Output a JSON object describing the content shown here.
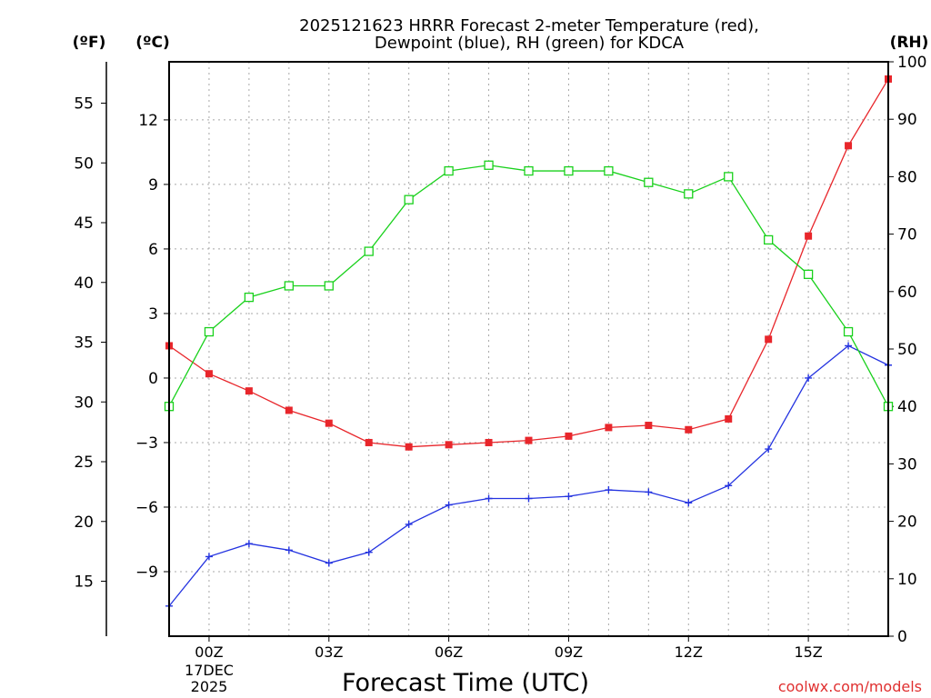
{
  "chart_data": {
    "type": "line",
    "title_line1": "2025121623 HRRR Forecast 2-meter Temperature (red),",
    "title_line2": "Dewpoint (blue), RH (green) for KDCA",
    "xlabel": "Forecast Time (UTC)",
    "watermark": "coolwx.com/models",
    "unit_labels": {
      "fahrenheit": "(ºF)",
      "celsius": "(ºC)",
      "rh": "(RH)"
    },
    "x_hours": [
      -1,
      0,
      1,
      2,
      3,
      4,
      5,
      6,
      7,
      8,
      9,
      10,
      11,
      12,
      13,
      14,
      15,
      16,
      17
    ],
    "xlim": [
      -1,
      17
    ],
    "x_ticks": [
      {
        "hour": 0,
        "label": "00Z"
      },
      {
        "hour": 3,
        "label": "03Z"
      },
      {
        "hour": 6,
        "label": "06Z"
      },
      {
        "hour": 9,
        "label": "09Z"
      },
      {
        "hour": 12,
        "label": "12Z"
      },
      {
        "hour": 15,
        "label": "15Z"
      }
    ],
    "date_label_line1": "17DEC",
    "date_label_line2": "2025",
    "celsius_axis": {
      "lim": [
        -12,
        14.7
      ],
      "ticks": [
        12,
        9,
        6,
        3,
        0,
        -3,
        -6,
        -9
      ],
      "tick_labels": [
        "12",
        "9",
        "6",
        "3",
        "0",
        "−3",
        "−6",
        "−9"
      ]
    },
    "fahrenheit_axis": {
      "ticks": [
        55,
        50,
        45,
        40,
        35,
        30,
        25,
        20,
        15
      ],
      "tick_labels": [
        "55",
        "50",
        "45",
        "40",
        "35",
        "30",
        "25",
        "20",
        "15"
      ]
    },
    "rh_axis": {
      "lim": [
        0,
        100
      ],
      "ticks": [
        100,
        90,
        80,
        70,
        60,
        50,
        40,
        30,
        20,
        10,
        0
      ],
      "tick_labels": [
        "100",
        "90",
        "80",
        "70",
        "60",
        "50",
        "40",
        "30",
        "20",
        "10",
        "0"
      ]
    },
    "series": [
      {
        "name": "2-meter Temperature",
        "units": "°C",
        "axis": "celsius",
        "color": "#e8262b",
        "marker": "filled-square",
        "values": [
          1.5,
          0.2,
          -0.6,
          -1.5,
          -2.1,
          -3.0,
          -3.2,
          -3.1,
          -3.0,
          -2.9,
          -2.7,
          -2.3,
          -2.2,
          -2.4,
          -1.9,
          1.8,
          6.6,
          10.8,
          13.9
        ]
      },
      {
        "name": "Dewpoint",
        "units": "°C",
        "axis": "celsius",
        "color": "#2433e0",
        "marker": "plus",
        "values": [
          -10.6,
          -8.3,
          -7.7,
          -8.0,
          -8.6,
          -8.1,
          -6.8,
          -5.9,
          -5.6,
          -5.6,
          -5.5,
          -5.2,
          -5.3,
          -5.8,
          -5.0,
          -3.3,
          0.0,
          1.5,
          0.6
        ]
      },
      {
        "name": "RH",
        "units": "%",
        "axis": "rh",
        "color": "#19d11c",
        "marker": "open-square",
        "values": [
          40,
          53,
          59,
          61,
          61,
          67,
          76,
          81,
          82,
          81,
          81,
          81,
          79,
          77,
          80,
          69,
          63,
          53,
          40
        ]
      }
    ]
  }
}
